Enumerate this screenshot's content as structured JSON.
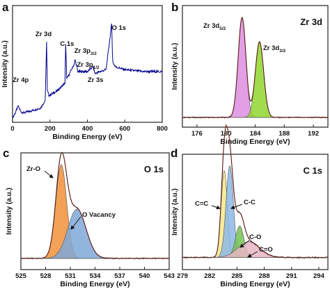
{
  "panels": [
    {
      "letter": "a",
      "title": "",
      "xlabel": "Binding Energy (eV)",
      "ylabel": "Intensity (a.u.)",
      "xlim": [
        0,
        800
      ],
      "xticks": [
        0,
        200,
        400,
        600,
        800
      ],
      "xtick_labels": [
        "0",
        "200",
        "400",
        "600",
        "800"
      ],
      "peak_labels": [
        {
          "text": "Zr 4p",
          "x": 30
        },
        {
          "text": "Zr 3d",
          "x": 182
        },
        {
          "text": "C 1s",
          "x": 284
        },
        {
          "text": "Zr 3p3/2",
          "x": 330
        },
        {
          "text": "Zr 3p1/2",
          "x": 344
        },
        {
          "text": "Zr 3s",
          "x": 431
        },
        {
          "text": "O 1s",
          "x": 530
        }
      ]
    },
    {
      "letter": "b",
      "title": "Zr 3d",
      "xlabel": "Binding Energy (eV)",
      "ylabel": "Intensity (a.u.)",
      "xlim": [
        174,
        194
      ],
      "xticks": [
        176,
        180,
        184,
        188,
        192
      ],
      "xtick_labels": [
        "176",
        "180",
        "184",
        "188",
        "192"
      ],
      "peak_labels": [
        {
          "text": "Zr 3d5/2",
          "x": 182.2
        },
        {
          "text": "Zr 3d3/2",
          "x": 184.6
        }
      ]
    },
    {
      "letter": "c",
      "title": "O 1s",
      "xlabel": "Binding Energy (eV)",
      "ylabel": "Intensity (a.u.)",
      "xlim": [
        525,
        543
      ],
      "xticks": [
        525,
        528,
        531,
        534,
        537,
        540,
        543
      ],
      "xtick_labels": [
        "525",
        "528",
        "531",
        "534",
        "537",
        "540",
        "543"
      ],
      "peak_labels": [
        {
          "text": "Zr-O",
          "x": 529.9
        },
        {
          "text": "O Vacancy",
          "x": 531.8
        }
      ]
    },
    {
      "letter": "d",
      "title": "C 1s",
      "xlabel": "Binding Energy (eV)",
      "ylabel": "Intensity (a.u.)",
      "xlim": [
        279,
        295
      ],
      "xticks": [
        279,
        282,
        285,
        288,
        291,
        294
      ],
      "xtick_labels": [
        "279",
        "282",
        "285",
        "288",
        "291",
        "294"
      ],
      "peak_labels": [
        {
          "text": "C=C",
          "x": 283.6
        },
        {
          "text": "C-C",
          "x": 284.4
        },
        {
          "text": "C-O",
          "x": 285.4
        },
        {
          "text": "C=O",
          "x": 286.5
        }
      ]
    }
  ],
  "chart_data": [
    {
      "type": "line",
      "panel": "a",
      "xlabel": "Binding Energy (eV)",
      "ylabel": "Intensity (a.u.)",
      "xlim": [
        0,
        800
      ],
      "series": [
        {
          "color": "#00008b",
          "x": [
            0,
            10,
            30,
            45,
            60,
            100,
            150,
            175,
            182,
            186,
            195,
            240,
            280,
            284,
            290,
            330,
            334,
            344,
            348,
            400,
            431,
            440,
            500,
            530,
            535,
            550,
            600,
            700,
            800
          ],
          "y": [
            0.02,
            0.05,
            0.14,
            0.08,
            0.07,
            0.09,
            0.12,
            0.2,
            0.82,
            0.3,
            0.25,
            0.3,
            0.38,
            0.78,
            0.42,
            0.58,
            0.62,
            0.55,
            0.5,
            0.5,
            0.55,
            0.48,
            0.52,
            1.0,
            0.6,
            0.55,
            0.52,
            0.5,
            0.5
          ]
        }
      ],
      "peaks": [
        {
          "label": "Zr 4p",
          "x": 30
        },
        {
          "label": "Zr 3d",
          "x": 182
        },
        {
          "label": "C 1s",
          "x": 284
        },
        {
          "label": "Zr 3p3/2",
          "x": 330
        },
        {
          "label": "Zr 3p1/2",
          "x": 344
        },
        {
          "label": "Zr 3s",
          "x": 431
        },
        {
          "label": "O 1s",
          "x": 530
        }
      ]
    },
    {
      "type": "area",
      "panel": "b",
      "title": "Zr 3d",
      "xlabel": "Binding Energy (eV)",
      "ylabel": "Intensity (a.u.)",
      "xlim": [
        174,
        194
      ],
      "background": 0.05,
      "components": [
        {
          "label": "Zr 3d5/2",
          "center": 182.2,
          "fwhm": 1.25,
          "height": 0.9,
          "color": "#dd8ee0"
        },
        {
          "label": "Zr 3d3/2",
          "center": 184.6,
          "fwhm": 1.35,
          "height": 0.68,
          "color": "#8fd62e"
        }
      ]
    },
    {
      "type": "area",
      "panel": "c",
      "title": "O 1s",
      "xlabel": "Binding Energy (eV)",
      "ylabel": "Intensity (a.u.)",
      "xlim": [
        525,
        543
      ],
      "background": 0.06,
      "components": [
        {
          "label": "Zr-O",
          "center": 529.9,
          "fwhm": 1.55,
          "height": 0.8,
          "color": "#f0913a"
        },
        {
          "label": "O Vacancy",
          "center": 531.8,
          "fwhm": 2.6,
          "height": 0.42,
          "color": "#7fa8d8"
        }
      ]
    },
    {
      "type": "area",
      "panel": "d",
      "title": "C 1s",
      "xlabel": "Binding Energy (eV)",
      "ylabel": "Intensity (a.u.)",
      "xlim": [
        279,
        295
      ],
      "background": 0.05,
      "components": [
        {
          "label": "C=C",
          "center": 283.6,
          "fwhm": 0.8,
          "height": 0.55,
          "color": "#f4e88a"
        },
        {
          "label": "C-C",
          "center": 284.2,
          "fwhm": 0.95,
          "height": 0.58,
          "color": "#8db9e8"
        },
        {
          "label": "C-O",
          "center": 285.3,
          "fwhm": 1.1,
          "height": 0.2,
          "color": "#76c153"
        },
        {
          "label": "C=O",
          "center": 286.3,
          "fwhm": 2.8,
          "height": 0.1,
          "color": "#e8b6c6"
        }
      ]
    }
  ]
}
